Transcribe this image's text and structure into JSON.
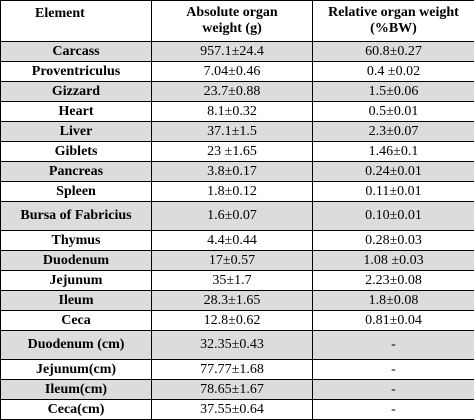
{
  "table": {
    "headers": [
      "Element",
      "Absolute organ\nweight (g)",
      "Relative organ weight\n(%BW)"
    ],
    "rows": [
      {
        "element": "Carcass",
        "absolute": "957.1±24.4",
        "relative": "60.8±0.27",
        "shaded": true
      },
      {
        "element": "Proventriculus",
        "absolute": "7.04±0.46",
        "relative": "0.4  ±0.02",
        "shaded": false
      },
      {
        "element": "Gizzard",
        "absolute": "23.7±0.88",
        "relative": "1.5±0.06",
        "shaded": true
      },
      {
        "element": "Heart",
        "absolute": "8.1±0.32",
        "relative": "0.5±0.01",
        "shaded": false
      },
      {
        "element": "Liver",
        "absolute": "37.1±1.5",
        "relative": "2.3±0.07",
        "shaded": true
      },
      {
        "element": "Giblets",
        "absolute": "23 ±1.65",
        "relative": "1.46±0.1",
        "shaded": false
      },
      {
        "element": "Pancreas",
        "absolute": "3.8±0.17",
        "relative": "0.24±0.01",
        "shaded": true
      },
      {
        "element": "Spleen",
        "absolute": "1.8±0.12",
        "relative": "0.11±0.01",
        "shaded": false
      },
      {
        "element": "Bursa of Fabricius",
        "absolute": "1.6±0.07",
        "relative": "0.10±0.01",
        "shaded": true,
        "tall": true
      },
      {
        "element": "Thymus",
        "absolute": "4.4±0.44",
        "relative": "0.28±0.03",
        "shaded": false
      },
      {
        "element": "Duodenum",
        "absolute": "17±0.57",
        "relative": "1.08 ±0.03",
        "shaded": true
      },
      {
        "element": "Jejunum",
        "absolute": "35±1.7",
        "relative": "2.23±0.08",
        "shaded": false
      },
      {
        "element": "Ileum",
        "absolute": "28.3±1.65",
        "relative": "1.8±0.08",
        "shaded": true
      },
      {
        "element": "Ceca",
        "absolute": "12.8±0.62",
        "relative": "0.81±0.04",
        "shaded": false
      },
      {
        "element": "Duodenum (cm)",
        "absolute": "32.35±0.43",
        "relative": "-",
        "shaded": true,
        "tall": true
      },
      {
        "element": "Jejunum(cm)",
        "absolute": "77.77±1.68",
        "relative": "-",
        "shaded": false
      },
      {
        "element": "Ileum(cm)",
        "absolute": "78.65±1.67",
        "relative": "-",
        "shaded": true
      },
      {
        "element": "Ceca(cm)",
        "absolute": "37.55±0.64",
        "relative": "-",
        "shaded": false
      }
    ]
  }
}
